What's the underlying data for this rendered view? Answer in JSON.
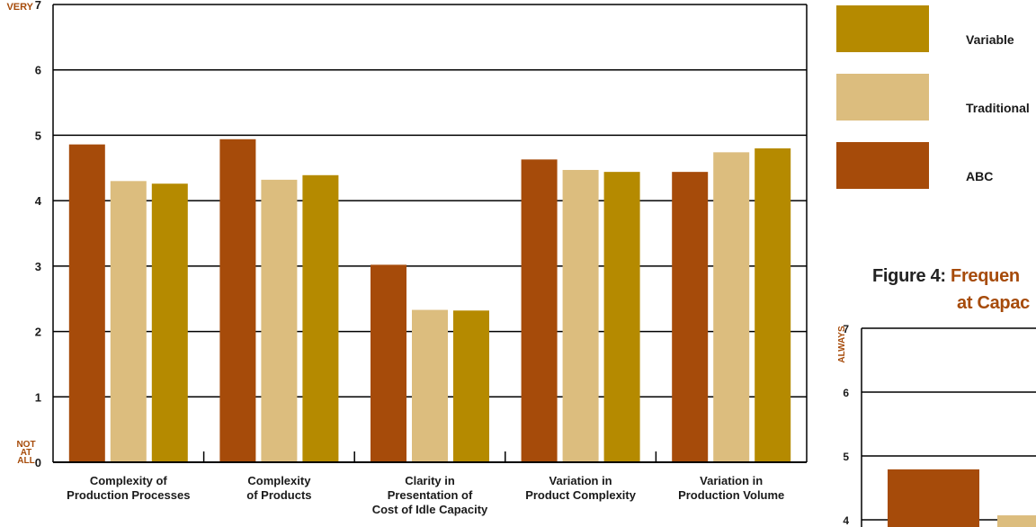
{
  "colors": {
    "abc": "#a64b0a",
    "traditional": "#dcbd7e",
    "variable": "#b58a00",
    "axis": "#000000",
    "accent": "#a64b0a"
  },
  "legend": [
    {
      "label": "Variable",
      "color": "#b58a00"
    },
    {
      "label": "Traditional",
      "color": "#dcbd7e"
    },
    {
      "label": "ABC",
      "color": "#a64b0a"
    }
  ],
  "chart_data": [
    {
      "type": "bar",
      "categories": [
        [
          "Complexity of",
          "Production Processes"
        ],
        [
          "Complexity",
          "of Products"
        ],
        [
          "Clarity in",
          "Presentation of",
          "Cost of Idle Capacity"
        ],
        [
          "Variation in",
          "Product Complexity"
        ],
        [
          "Variation in",
          "Production Volume"
        ]
      ],
      "series": [
        {
          "name": "ABC",
          "values": [
            4.86,
            4.94,
            3.02,
            4.63,
            4.44
          ]
        },
        {
          "name": "Traditional",
          "values": [
            4.3,
            4.32,
            2.33,
            4.47,
            4.74
          ]
        },
        {
          "name": "Variable",
          "values": [
            4.26,
            4.39,
            2.32,
            4.44,
            4.8
          ]
        }
      ],
      "yticks": [
        "0",
        "1",
        "2",
        "3",
        "4",
        "5",
        "6",
        "7"
      ],
      "top_label": "VERY",
      "bottom_label": [
        "NOT",
        "AT",
        "ALL"
      ],
      "ylim": [
        0,
        7
      ],
      "grid": true
    },
    {
      "type": "bar",
      "title_prefix": "Figure 4:",
      "title_accent": "Frequen",
      "subtitle": "at Capac",
      "yticks": [
        "4",
        "5",
        "6",
        "7"
      ],
      "top_label": "ALWAYS",
      "series": [
        {
          "name": "ABC",
          "values": [
            4.79
          ]
        },
        {
          "name": "Traditional",
          "values": [
            4.07
          ]
        }
      ],
      "ylim": [
        0,
        7
      ],
      "grid": true
    }
  ]
}
